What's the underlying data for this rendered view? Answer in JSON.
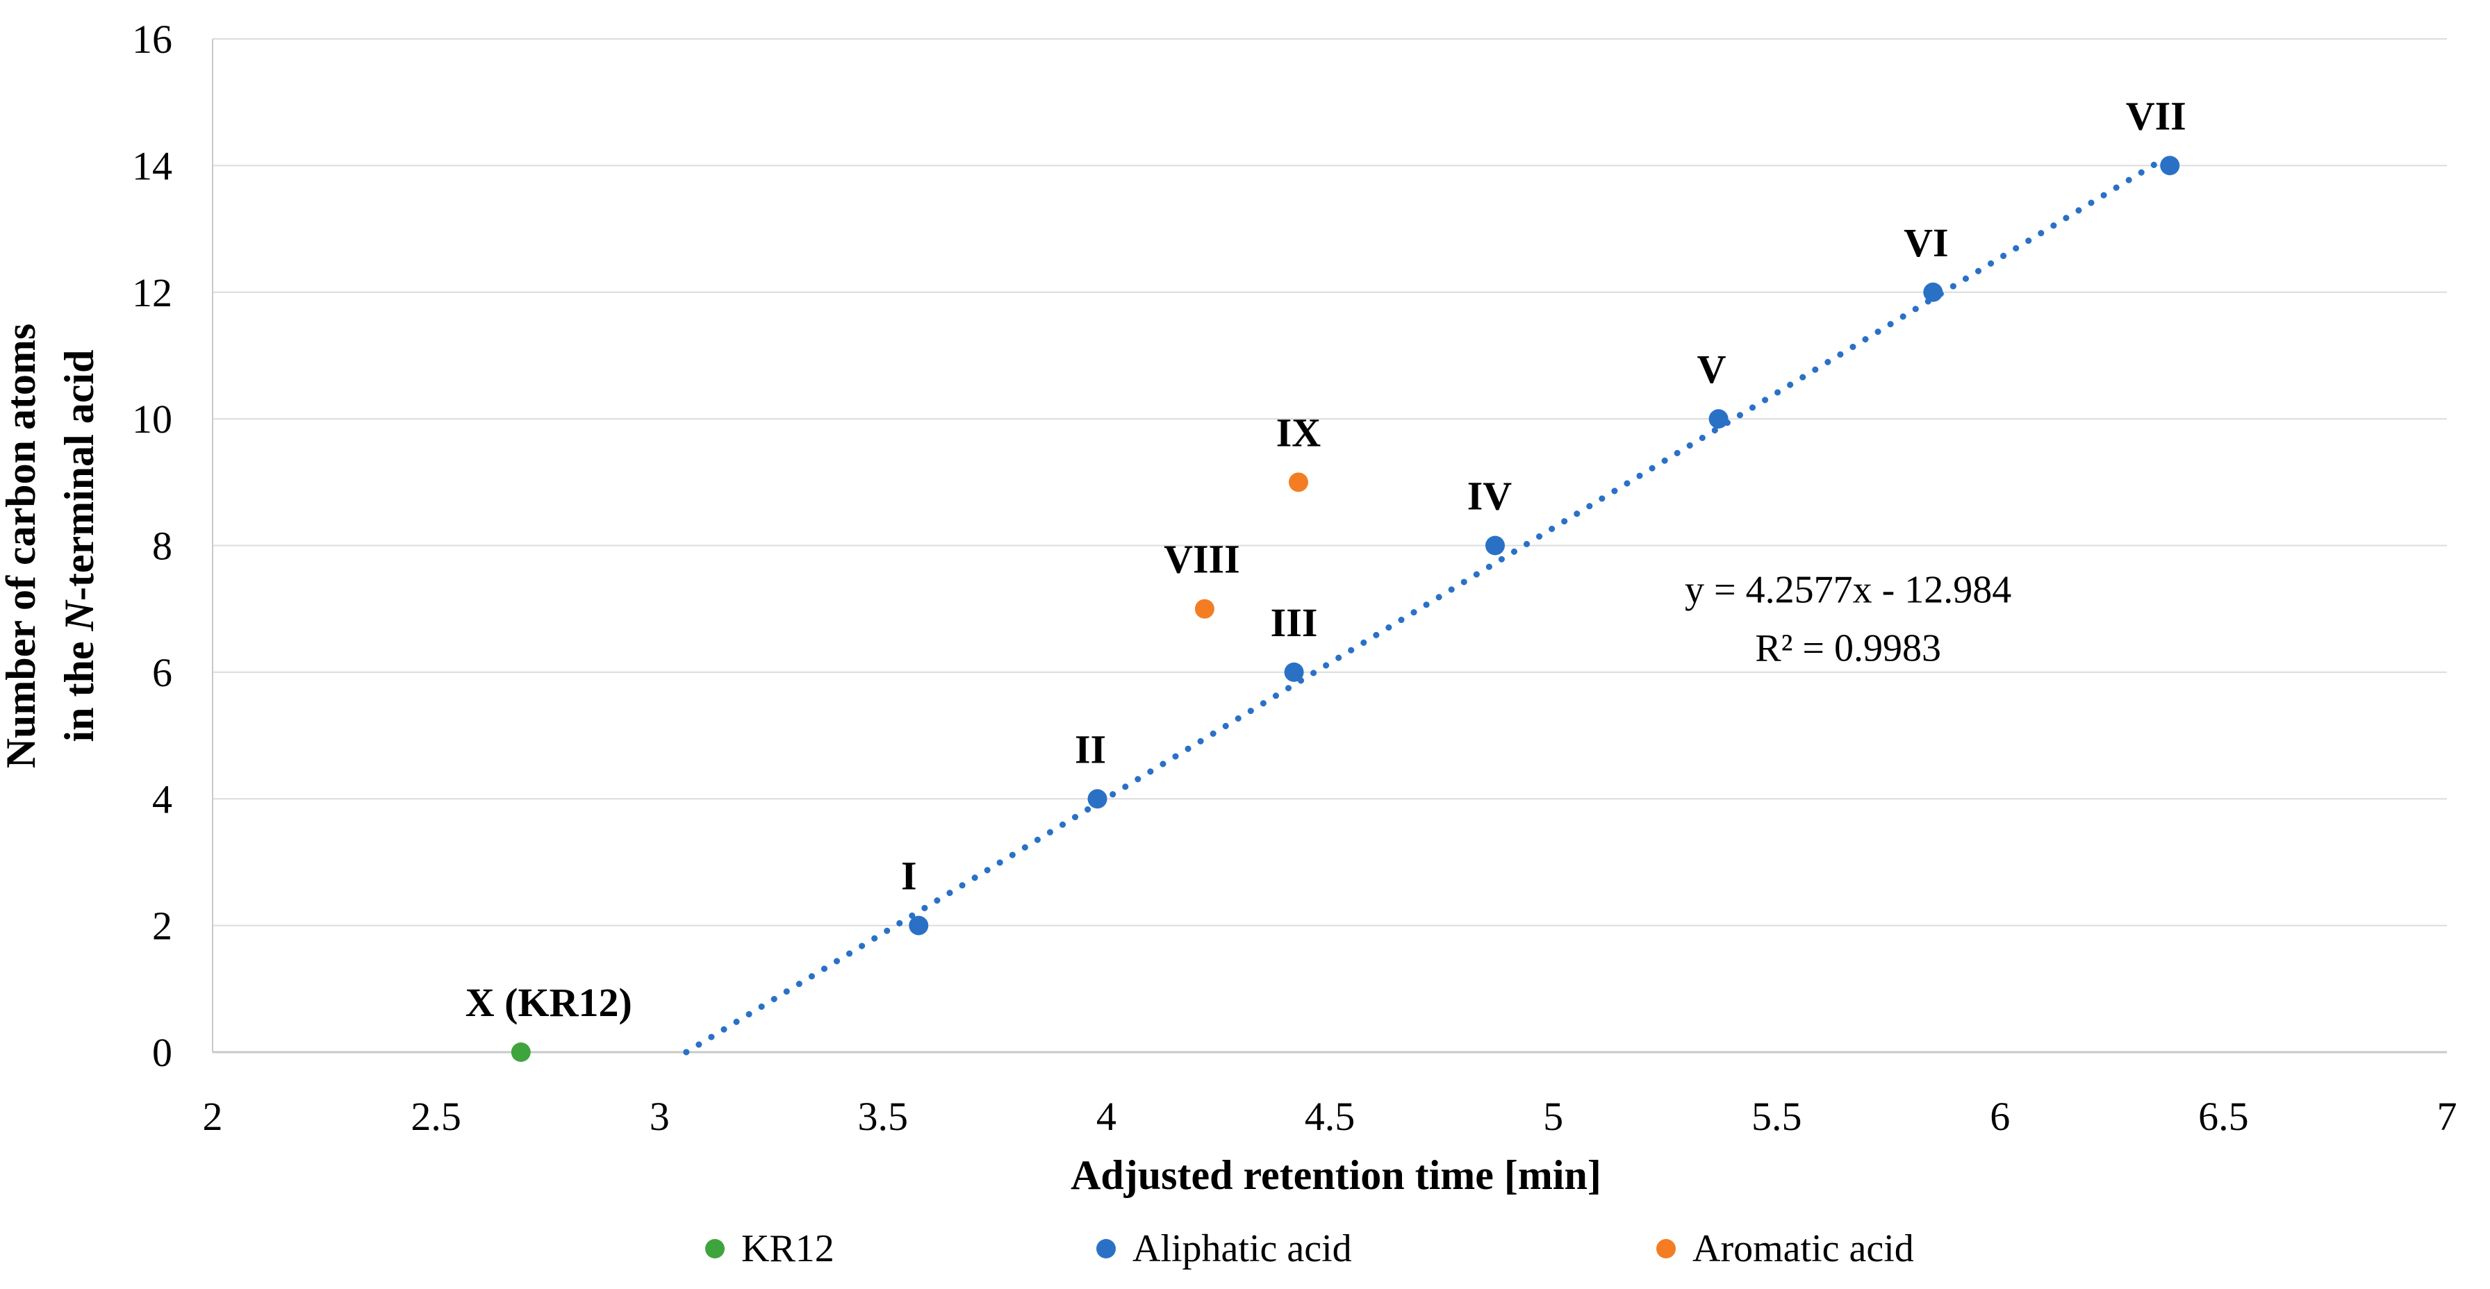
{
  "chart_data": {
    "type": "scatter",
    "title": "",
    "xlabel": "Adjusted retention time [min]",
    "ylabel_lines": [
      [
        {
          "t": "Number of carbon atoms"
        }
      ],
      [
        {
          "t": "in the "
        },
        {
          "t": "N",
          "italic": true
        },
        {
          "t": "-terminal acid"
        }
      ]
    ],
    "xlim": [
      2,
      7
    ],
    "ylim": [
      0,
      16
    ],
    "x_ticks": [
      {
        "v": 2,
        "label": "2"
      },
      {
        "v": 2.5,
        "label": "2.5"
      },
      {
        "v": 3,
        "label": "3"
      },
      {
        "v": 3.5,
        "label": "3.5"
      },
      {
        "v": 4,
        "label": "4"
      },
      {
        "v": 4.5,
        "label": "4.5"
      },
      {
        "v": 5,
        "label": "5"
      },
      {
        "v": 5.5,
        "label": "5.5"
      },
      {
        "v": 6,
        "label": "6"
      },
      {
        "v": 6.5,
        "label": "6.5"
      },
      {
        "v": 7,
        "label": "7"
      }
    ],
    "y_ticks": [
      {
        "v": 0,
        "label": "0"
      },
      {
        "v": 2,
        "label": "2"
      },
      {
        "v": 4,
        "label": "4"
      },
      {
        "v": 6,
        "label": "6"
      },
      {
        "v": 8,
        "label": "8"
      },
      {
        "v": 10,
        "label": "10"
      },
      {
        "v": 12,
        "label": "12"
      },
      {
        "v": 14,
        "label": "14"
      },
      {
        "v": 16,
        "label": "16"
      }
    ],
    "grid": "horizontal",
    "series": [
      {
        "name": "KR12",
        "color": "#3EA43E",
        "points": [
          {
            "x": 2.69,
            "y": 0,
            "label": "X (KR12)",
            "label_dx": 40,
            "label_dy": -52
          }
        ]
      },
      {
        "name": "Aliphatic acid",
        "color": "#2A71C6",
        "points": [
          {
            "x": 3.58,
            "y": 2,
            "label": "I",
            "label_dx": -14,
            "label_dy": -52
          },
          {
            "x": 3.98,
            "y": 4,
            "label": "II",
            "label_dx": -10,
            "label_dy": -52
          },
          {
            "x": 4.42,
            "y": 6,
            "label": "III",
            "label_dx": 0,
            "label_dy": -52
          },
          {
            "x": 4.87,
            "y": 8,
            "label": "IV",
            "label_dx": -8,
            "label_dy": -52
          },
          {
            "x": 5.37,
            "y": 10,
            "label": "V",
            "label_dx": -10,
            "label_dy": -52
          },
          {
            "x": 5.85,
            "y": 12,
            "label": "VI",
            "label_dx": -10,
            "label_dy": -52
          },
          {
            "x": 6.38,
            "y": 14,
            "label": "VII",
            "label_dx": -20,
            "label_dy": -52
          }
        ]
      },
      {
        "name": "Aromatic acid",
        "color": "#F47D24",
        "points": [
          {
            "x": 4.22,
            "y": 7,
            "label": "VIII",
            "label_dx": -4,
            "label_dy": -52
          },
          {
            "x": 4.43,
            "y": 9,
            "label": "IX",
            "label_dx": 0,
            "label_dy": -52
          }
        ]
      }
    ],
    "trendline": {
      "color": "#2A71C6",
      "style": "dotted",
      "from": {
        "x": 3.06,
        "y": 0
      },
      "to": {
        "x": 6.37,
        "y": 14.12
      },
      "equation": "y = 4.2577x - 12.984",
      "r2": "R² = 0.9983",
      "annotation_anchor": {
        "x": 5.66,
        "y": 7.1
      }
    },
    "legend": {
      "position": "bottom",
      "items": [
        {
          "label": "KR12",
          "color": "#3EA43E"
        },
        {
          "label": "Aliphatic acid",
          "color": "#2A71C6"
        },
        {
          "label": "Aromatic acid",
          "color": "#F47D24"
        }
      ]
    },
    "colors": {
      "gridline": "#DCDCDC",
      "axis_line": "#C9C9C9",
      "text": "#000000",
      "background": "#FFFFFF"
    }
  }
}
